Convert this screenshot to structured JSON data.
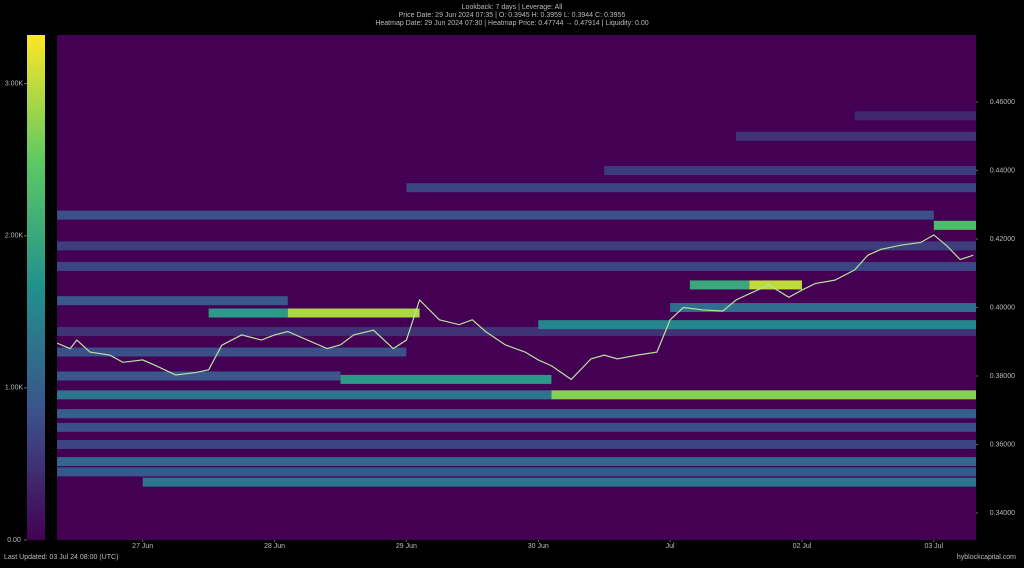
{
  "chart_data": {
    "type": "heatmap",
    "header": [
      "Lookback: 7 days | Leverage: All",
      "Price Date: 29 Jun 2024 07:35 | O: 0.3945 H: 0.3959 L: 0.3944 C: 0.3955",
      "Heatmap Date: 29 Jun 2024 07:30 | Heatmap Price: 0.47744 → 0.47914 | Liquidity: 0.00"
    ],
    "footer_left": "Last Updated: 03 Jul 24 08:00 (UTC)",
    "footer_right": "hyblockcapital.com",
    "xlim": [
      26.35,
      33.32
    ],
    "xticks": [
      {
        "value": 27,
        "label": "27 Jun"
      },
      {
        "value": 28,
        "label": "28 Jun"
      },
      {
        "value": 29,
        "label": "29 Jun"
      },
      {
        "value": 30,
        "label": "30 Jun"
      },
      {
        "value": 31,
        "label": "Jul"
      },
      {
        "value": 32,
        "label": "02 Jul"
      },
      {
        "value": 33,
        "label": "03 Jul"
      }
    ],
    "ylim": [
      0.3321,
      0.4796
    ],
    "yticks": [
      {
        "value": 0.34,
        "label": "0.34000"
      },
      {
        "value": 0.36,
        "label": "0.36000"
      },
      {
        "value": 0.38,
        "label": "0.38000"
      },
      {
        "value": 0.4,
        "label": "0.40000"
      },
      {
        "value": 0.42,
        "label": "0.42000"
      },
      {
        "value": 0.44,
        "label": "0.44000"
      },
      {
        "value": 0.46,
        "label": "0.46000"
      }
    ],
    "colorbar": {
      "lim": [
        0,
        3320
      ],
      "ticks": [
        {
          "value": 0,
          "label": "0.00"
        },
        {
          "value": 1000,
          "label": "1.00K"
        },
        {
          "value": 2000,
          "label": "2.00K"
        },
        {
          "value": 3000,
          "label": "3.00K"
        }
      ]
    },
    "x": [
      26.35,
      26.45,
      26.5,
      26.6,
      26.75,
      26.85,
      27.0,
      27.1,
      27.25,
      27.4,
      27.5,
      27.6,
      27.75,
      27.9,
      28.0,
      28.1,
      28.25,
      28.4,
      28.5,
      28.6,
      28.75,
      28.9,
      29.0,
      29.1,
      29.25,
      29.4,
      29.5,
      29.6,
      29.75,
      29.9,
      30.0,
      30.1,
      30.25,
      30.4,
      30.5,
      30.6,
      30.75,
      30.9,
      31.0,
      31.1,
      31.25,
      31.4,
      31.5,
      31.6,
      31.75,
      31.9,
      32.0,
      32.1,
      32.25,
      32.4,
      32.5,
      32.6,
      32.75,
      32.9,
      33.0,
      33.1,
      33.2,
      33.3
    ],
    "values": [
      0.3896,
      0.388,
      0.3905,
      0.387,
      0.3861,
      0.384,
      0.3847,
      0.383,
      0.3803,
      0.381,
      0.3818,
      0.389,
      0.392,
      0.3905,
      0.392,
      0.393,
      0.3905,
      0.388,
      0.3891,
      0.392,
      0.3934,
      0.388,
      0.3905,
      0.4022,
      0.3964,
      0.395,
      0.3964,
      0.393,
      0.3891,
      0.387,
      0.3847,
      0.383,
      0.379,
      0.385,
      0.3861,
      0.385,
      0.3861,
      0.387,
      0.3964,
      0.4,
      0.3993,
      0.399,
      0.4022,
      0.404,
      0.4066,
      0.403,
      0.4051,
      0.407,
      0.408,
      0.411,
      0.4153,
      0.417,
      0.4182,
      0.419,
      0.4212,
      0.418,
      0.414,
      0.4153
    ],
    "heatmap": [
      {
        "price": 0.3745,
        "start": 26.35,
        "end": 30.1,
        "value": 1300
      },
      {
        "price": 0.3745,
        "start": 30.1,
        "end": 33.32,
        "value": 2700
      },
      {
        "price": 0.379,
        "start": 28.5,
        "end": 30.1,
        "value": 1800
      },
      {
        "price": 0.38,
        "start": 26.35,
        "end": 28.5,
        "value": 900
      },
      {
        "price": 0.402,
        "start": 26.35,
        "end": 28.1,
        "value": 900
      },
      {
        "price": 0.3984,
        "start": 27.5,
        "end": 28.1,
        "value": 1800
      },
      {
        "price": 0.3984,
        "start": 28.1,
        "end": 29.1,
        "value": 2900
      },
      {
        "price": 0.4066,
        "start": 31.15,
        "end": 31.6,
        "value": 2000
      },
      {
        "price": 0.4066,
        "start": 31.6,
        "end": 32.0,
        "value": 3000
      },
      {
        "price": 0.424,
        "start": 33.0,
        "end": 33.32,
        "value": 2300
      },
      {
        "price": 0.427,
        "start": 26.35,
        "end": 33.0,
        "value": 800
      },
      {
        "price": 0.435,
        "start": 29.0,
        "end": 33.32,
        "value": 700
      },
      {
        "price": 0.44,
        "start": 30.5,
        "end": 33.32,
        "value": 600
      },
      {
        "price": 0.45,
        "start": 31.5,
        "end": 33.32,
        "value": 500
      },
      {
        "price": 0.456,
        "start": 32.4,
        "end": 33.32,
        "value": 400
      },
      {
        "price": 0.355,
        "start": 26.35,
        "end": 33.32,
        "value": 1100
      },
      {
        "price": 0.352,
        "start": 26.35,
        "end": 33.32,
        "value": 900
      },
      {
        "price": 0.349,
        "start": 27.0,
        "end": 33.32,
        "value": 1300
      },
      {
        "price": 0.36,
        "start": 26.35,
        "end": 33.32,
        "value": 700
      },
      {
        "price": 0.365,
        "start": 26.35,
        "end": 33.32,
        "value": 800
      },
      {
        "price": 0.369,
        "start": 26.35,
        "end": 33.32,
        "value": 1000
      },
      {
        "price": 0.418,
        "start": 26.35,
        "end": 33.32,
        "value": 600
      },
      {
        "price": 0.412,
        "start": 26.35,
        "end": 33.32,
        "value": 700
      },
      {
        "price": 0.387,
        "start": 26.35,
        "end": 29.0,
        "value": 800
      },
      {
        "price": 0.393,
        "start": 26.35,
        "end": 33.32,
        "value": 500
      },
      {
        "price": 0.395,
        "start": 30.0,
        "end": 33.32,
        "value": 1500
      },
      {
        "price": 0.4,
        "start": 31.0,
        "end": 33.32,
        "value": 1200
      }
    ]
  }
}
